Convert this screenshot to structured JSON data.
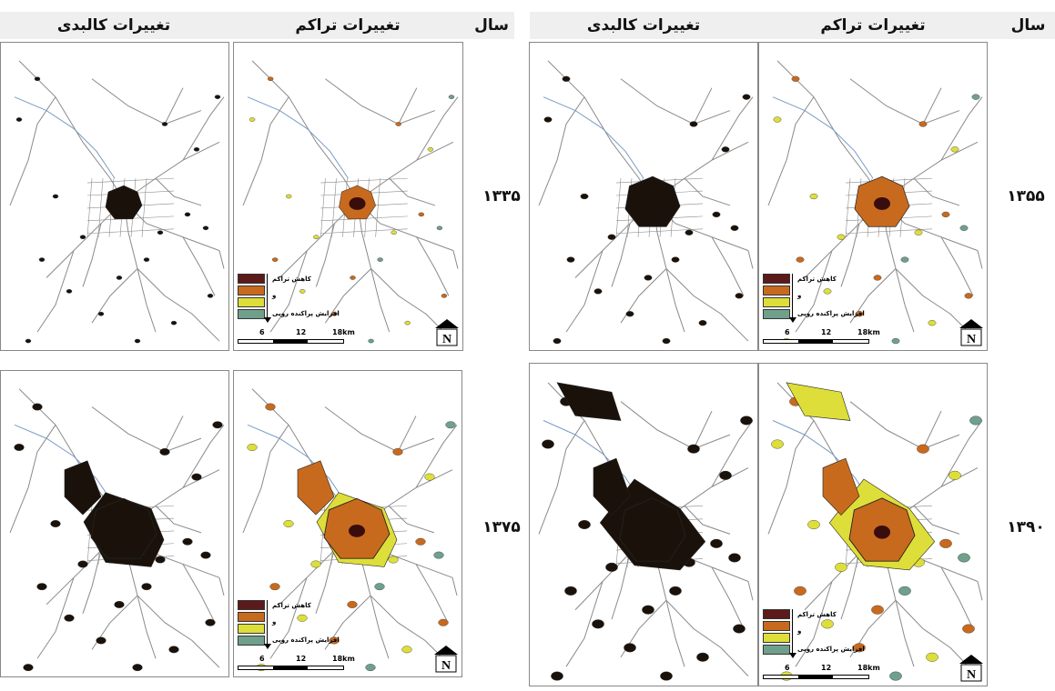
{
  "headers": {
    "year": "سال",
    "density": "تغییرات تراکم",
    "physical": "تغییرات کالبدی"
  },
  "years": [
    "۱۳۳۵",
    "۱۳۵۵",
    "۱۳۷۵",
    "۱۳۹۰"
  ],
  "legend": {
    "top_label": "کاهش تراکم",
    "middle_label": "و",
    "bottom_label": "افزایش پراکنده رویی",
    "colors": [
      "#5c1a1a",
      "#c86a1e",
      "#dede3a",
      "#6fa08c"
    ]
  },
  "scale": {
    "ticks": [
      "6",
      "12",
      "18km"
    ]
  },
  "north_label": "N",
  "colors": {
    "core_dark": "#3a0d0d",
    "built": "#1a120a",
    "road": "#8a8a8a",
    "river": "#7a9cc8",
    "yellow": "#dede3a",
    "orange": "#c86a1e",
    "brown": "#7a2a10",
    "teal": "#6fa08c"
  }
}
